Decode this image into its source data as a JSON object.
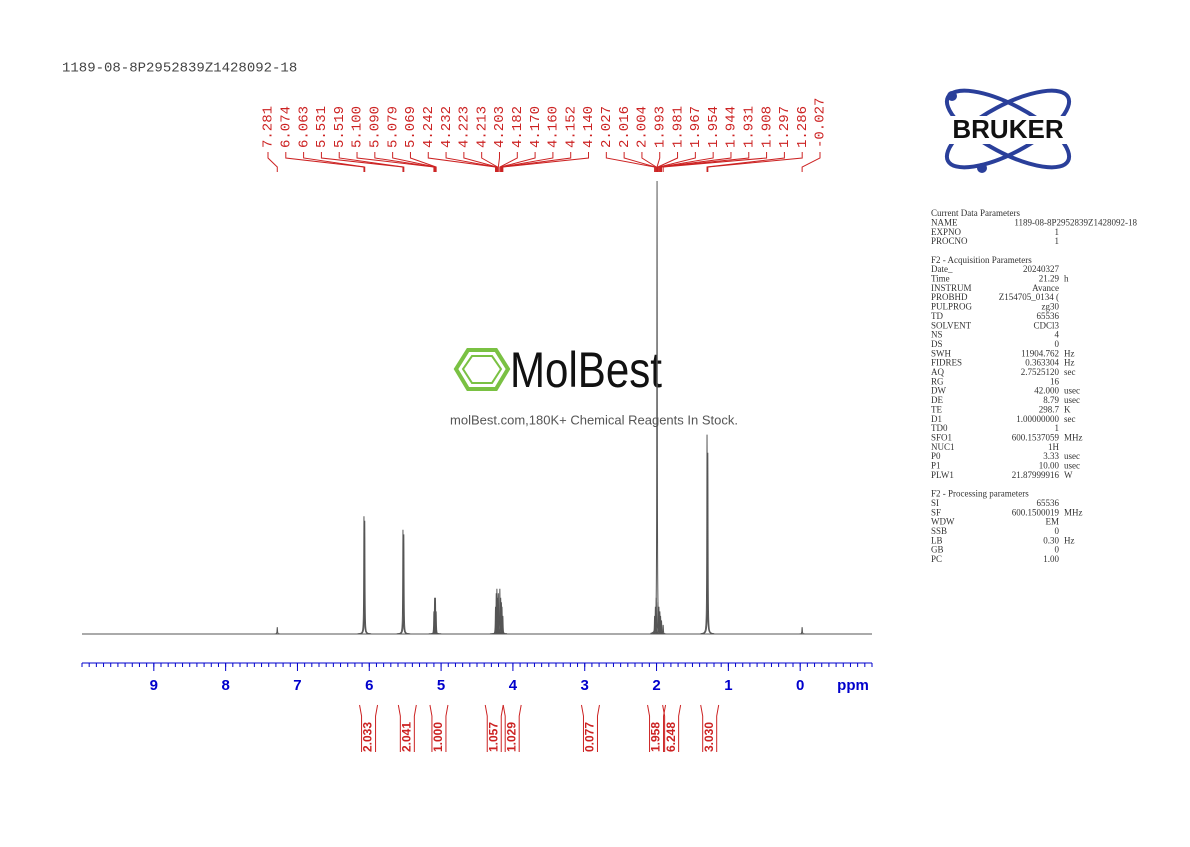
{
  "title": "1189-08-8P2952839Z1428092-18",
  "logo": "BRUKER",
  "watermark": {
    "brand": "MolBest",
    "tagline": "molBest.com,180K+ Chemical Reagents In Stock."
  },
  "chart_data": {
    "type": "nmr",
    "xlabel": "ppm",
    "xlim": [
      10,
      -1
    ],
    "xticks": [
      9,
      8,
      7,
      6,
      5,
      4,
      3,
      2,
      1,
      0
    ],
    "xminor": 0.1,
    "ylim": [
      0,
      100
    ],
    "color": "#555555",
    "peak_label_color": "#cc2222",
    "axis_color": "#0000cc",
    "peaks": [
      7.281,
      6.074,
      6.063,
      5.531,
      5.519,
      5.1,
      5.09,
      5.079,
      5.069,
      4.242,
      4.232,
      4.223,
      4.213,
      4.203,
      4.182,
      4.17,
      4.16,
      4.152,
      4.14,
      2.027,
      2.016,
      2.004,
      1.993,
      1.981,
      1.967,
      1.954,
      1.944,
      1.931,
      1.908,
      1.297,
      1.286,
      -0.027
    ],
    "peak_labels": [
      "7.281",
      "6.074",
      "6.063",
      "5.531",
      "5.519",
      "5.100",
      "5.090",
      "5.079",
      "5.069",
      "4.242",
      "4.232",
      "4.223",
      "4.213",
      "4.203",
      "4.182",
      "4.170",
      "4.160",
      "4.152",
      "4.140",
      "2.027",
      "2.016",
      "2.004",
      "1.993",
      "1.981",
      "1.967",
      "1.954",
      "1.944",
      "1.931",
      "1.908",
      "1.297",
      "1.286",
      "-0.027"
    ],
    "heights": [
      1.5,
      26,
      25,
      23,
      22,
      5,
      8,
      8,
      5,
      6,
      9,
      10,
      8,
      9,
      10,
      8,
      7,
      6,
      4,
      4,
      6,
      8,
      100,
      7,
      6,
      5,
      4,
      3,
      2,
      44,
      40,
      1.5
    ],
    "integral_x": [
      6.01,
      5.47,
      5.03,
      4.26,
      4.01,
      2.92,
      2.0,
      1.79,
      1.26
    ],
    "integrals": [
      2.033,
      2.041,
      {
        "value": 1,
        "label": "1.000"
      },
      1.057,
      1.029,
      0.077,
      1.958,
      6.248,
      {
        "value": 3.03,
        "label": "3.030"
      }
    ]
  },
  "parameters": {
    "heading": "Current Data Parameters",
    "rows": [
      [
        "NAME",
        "1189-08-8P2952839Z1428092-18"
      ],
      [
        "EXPNO",
        "1"
      ],
      [
        "PROCNO",
        "1"
      ]
    ],
    "acq_heading": "F2 - Acquisition Parameters",
    "acq_rows": [
      [
        "Date_",
        "20240327"
      ],
      [
        "Time",
        "21.29",
        "h"
      ],
      [
        "INSTRUM",
        "Avance"
      ],
      [
        "PROBHD",
        "Z154705_0134 ("
      ],
      [
        "PULPROG",
        "zg30"
      ],
      [
        "TD",
        "65536"
      ],
      [
        "SOLVENT",
        "CDCl3"
      ],
      [
        "NS",
        "4"
      ],
      [
        "DS",
        "0"
      ],
      [
        "SWH",
        "11904.762",
        "Hz"
      ],
      [
        "FIDRES",
        "0.363304",
        "Hz"
      ],
      [
        "AQ",
        "2.7525120",
        "sec"
      ],
      [
        "RG",
        "16"
      ],
      [
        "DW",
        "42.000",
        "usec"
      ],
      [
        "DE",
        "8.79",
        "usec"
      ],
      [
        "TE",
        "298.7",
        "K"
      ],
      [
        "D1",
        "1.00000000",
        "sec"
      ],
      [
        "TD0",
        "1"
      ],
      [
        "SFO1",
        "600.1537059",
        "MHz"
      ],
      [
        "NUC1",
        "1H"
      ],
      [
        "P0",
        "3.33",
        "usec"
      ],
      [
        "P1",
        "10.00",
        "usec"
      ],
      [
        "PLW1",
        "21.87999916",
        "W"
      ]
    ],
    "proc_heading": "F2 - Processing parameters",
    "proc_rows": [
      [
        "SI",
        "65536"
      ],
      [
        "SF",
        "600.1500019",
        "MHz"
      ],
      [
        "WDW",
        "EM"
      ],
      [
        "SSB",
        "0"
      ],
      [
        "LB",
        "0.30",
        "Hz"
      ],
      [
        "GB",
        "0"
      ],
      [
        "PC",
        "1.00"
      ]
    ]
  }
}
